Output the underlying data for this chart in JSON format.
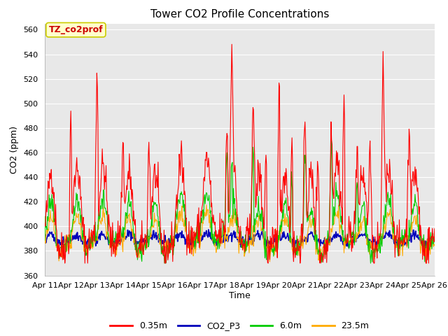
{
  "title": "Tower CO2 Profile Concentrations",
  "xlabel": "Time",
  "ylabel": "CO2 (ppm)",
  "ylim": [
    360,
    565
  ],
  "yticks": [
    360,
    380,
    400,
    420,
    440,
    460,
    480,
    500,
    520,
    540,
    560
  ],
  "date_labels": [
    "Apr 11",
    "Apr 12",
    "Apr 13",
    "Apr 14",
    "Apr 15",
    "Apr 16",
    "Apr 17",
    "Apr 18",
    "Apr 19",
    "Apr 20",
    "Apr 21",
    "Apr 22",
    "Apr 23",
    "Apr 24",
    "Apr 25",
    "Apr 26"
  ],
  "series_colors": [
    "#ff0000",
    "#0000bb",
    "#00cc00",
    "#ffaa00"
  ],
  "series_labels": [
    "0.35m",
    "CO2_P3",
    "6.0m",
    "23.5m"
  ],
  "series_linewidths": [
    0.8,
    1.2,
    0.8,
    0.8
  ],
  "annotation_text": "TZ_co2prof",
  "annotation_bg": "#ffffcc",
  "annotation_border": "#cccc00",
  "bg_color": "#e8e8e8",
  "title_fontsize": 11,
  "label_fontsize": 9,
  "tick_fontsize": 8,
  "legend_fontsize": 9
}
